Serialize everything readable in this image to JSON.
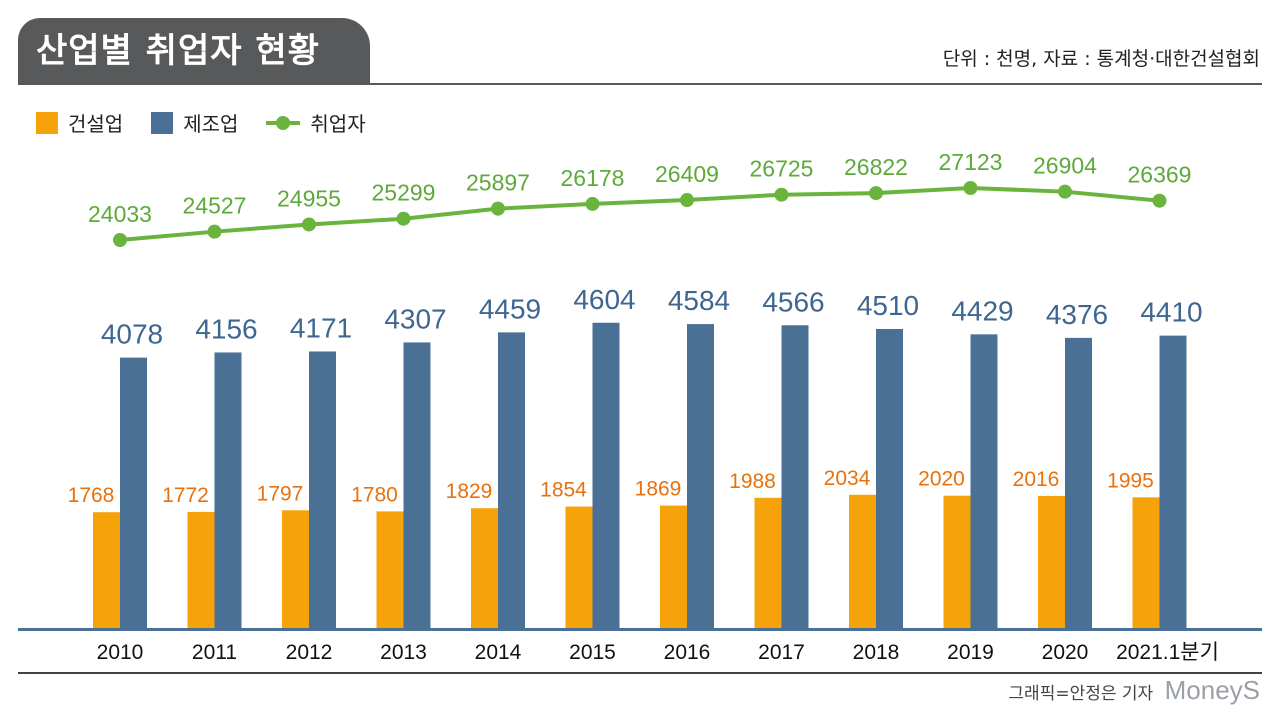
{
  "header": {
    "title": "산업별 취업자 현황",
    "unit_note": "단위 : 천명, 자료 : 통계청·대한건설협회"
  },
  "footer": {
    "credit": "그래픽=안정은 기자",
    "watermark": "MoneyS"
  },
  "colors": {
    "construction": "#f5a20b",
    "manufacturing": "#4a7096",
    "employed": "#6ab43e",
    "construction_label": "#e8710d",
    "manufacturing_label": "#3f6690",
    "employed_label": "#5da93a",
    "axis": "#4a7096"
  },
  "chart_data": {
    "type": "bar",
    "title": "산업별 취업자 현황",
    "categories": [
      "2010",
      "2011",
      "2012",
      "2013",
      "2014",
      "2015",
      "2016",
      "2017",
      "2018",
      "2019",
      "2020",
      "2021.1분기"
    ],
    "series": [
      {
        "name": "건설업",
        "type": "bar",
        "values": [
          1768,
          1772,
          1797,
          1780,
          1829,
          1854,
          1869,
          1988,
          2034,
          2020,
          2016,
          1995
        ]
      },
      {
        "name": "제조업",
        "type": "bar",
        "values": [
          4078,
          4156,
          4171,
          4307,
          4459,
          4604,
          4584,
          4566,
          4510,
          4429,
          4376,
          4410
        ]
      },
      {
        "name": "취업자",
        "type": "line",
        "values": [
          24033,
          24527,
          24955,
          25299,
          25897,
          26178,
          26409,
          26725,
          26822,
          27123,
          26904,
          26369
        ]
      }
    ],
    "legend_position": "top-left",
    "grid": false
  }
}
